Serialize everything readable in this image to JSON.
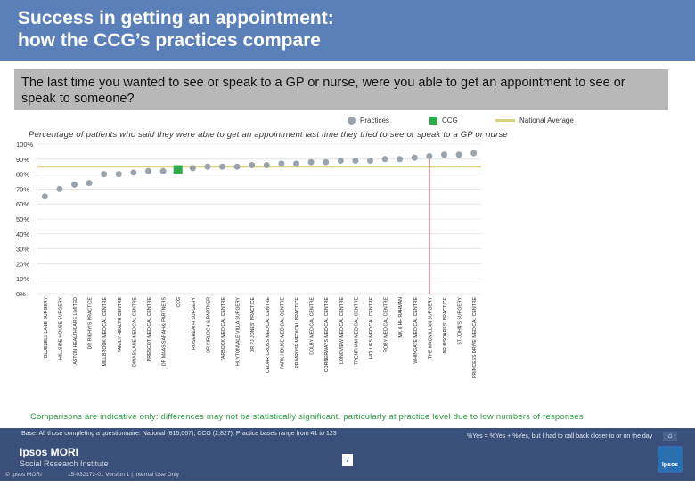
{
  "header": {
    "title": "Success in getting an appointment:\nhow the CCG’s practices compare"
  },
  "question": "The last time you wanted to see or speak to a GP or nurse, were you able to get an appointment to see or speak to someone?",
  "legend": {
    "practices": "Practices",
    "ccg": "CCG",
    "national": "National Average"
  },
  "subtitle": "Percentage of patients who said they were able to get an appointment last time they tried to see or speak to a GP or nurse",
  "comparison_note": "Comparisons are indicative only: differences may not be statistically significant, particularly at practice level due to low numbers of responses",
  "footer": {
    "base": "Base: All those completing a questionnaire: National (815,067); CCG (2,827); Practice bases range from 41 to 123",
    "note": "%Yes = %Yes + %Yes, but I had to call back closer to or on the day",
    "logo_line1": "Ipsos MORI",
    "logo_line2": "Social Research Institute",
    "copyright": "© Ipsos MORI",
    "version": "15-032172-01 Version 1 | Internal Use Only",
    "page_number": "7",
    "brand_mark": "Ipsos",
    "nav_icon": "home-icon"
  },
  "colors": {
    "practice": "#9aa3ab",
    "ccg": "#2eaa4a",
    "national": "#d8d27a",
    "header": "#5b7fb8",
    "footer": "#3a4f7a"
  },
  "chart_data": {
    "type": "scatter",
    "title": "Percentage of patients who said they were able to get an appointment last time they tried to see or speak to a GP or nurse",
    "y_ticks": [
      "0%",
      "10%",
      "20%",
      "30%",
      "40%",
      "50%",
      "60%",
      "70%",
      "80%",
      "90%",
      "100%"
    ],
    "ylim": [
      0,
      100
    ],
    "national_average": 85,
    "categories": [
      "BLUEBELL LANE SURGERY",
      "HILLSIDE HOUSE SURGERY",
      "ASTON HEALTHCARE LIMITED",
      "DR RIKHYI'S PRACTICE",
      "MILLBROOK MEDICAL CENTRE",
      "FAMILY HEALTH CENTRE",
      "DINAS LANE MEDICAL CENTRE",
      "PRESCOT MEDICAL CENTRE",
      "DR MAAS,SARAH & PARTNERS",
      "CCG",
      "ROSEHEATH SURGERY",
      "DR KIRLOCH & PARTNER",
      "TARBOCK MEDICAL CENTRE",
      "HUYTONVALE VILLA SURGERY",
      "DR PJ JONES' PRACTICE",
      "CEDAR CROSS MEDICAL CENTRE",
      "PARK HOUSE MEDICAL CENTRE",
      "PRIMROSE MEDICAL PRACTICE",
      "DOLBY MEDICAL CENTRE",
      "CORNERWAYS MEDICAL CENTRE",
      "LONGVIEW MEDICAL CENTRE",
      "TRENTHAM MEDICAL CENTRE",
      "HOLLIES MEDICAL CENTRE",
      "ROBY MEDICAL CENTRE",
      "MK & HH RAHMAN",
      "WHINGATE MEDICAL CENTRE",
      "THE MACMILLAN SURGERY",
      "DR MSOARES' PRACTICE",
      "ST JOHN'S SURGERY",
      "PRINCESS DRIVE MEDICAL CENTRE"
    ],
    "values": [
      65,
      70,
      73,
      74,
      80,
      80,
      81,
      82,
      82,
      83,
      84,
      85,
      85,
      85,
      86,
      86,
      87,
      87,
      88,
      88,
      89,
      89,
      89,
      90,
      90,
      91,
      92,
      93,
      93,
      94
    ],
    "ccg_index": 9,
    "highlight_line_index": 26
  }
}
